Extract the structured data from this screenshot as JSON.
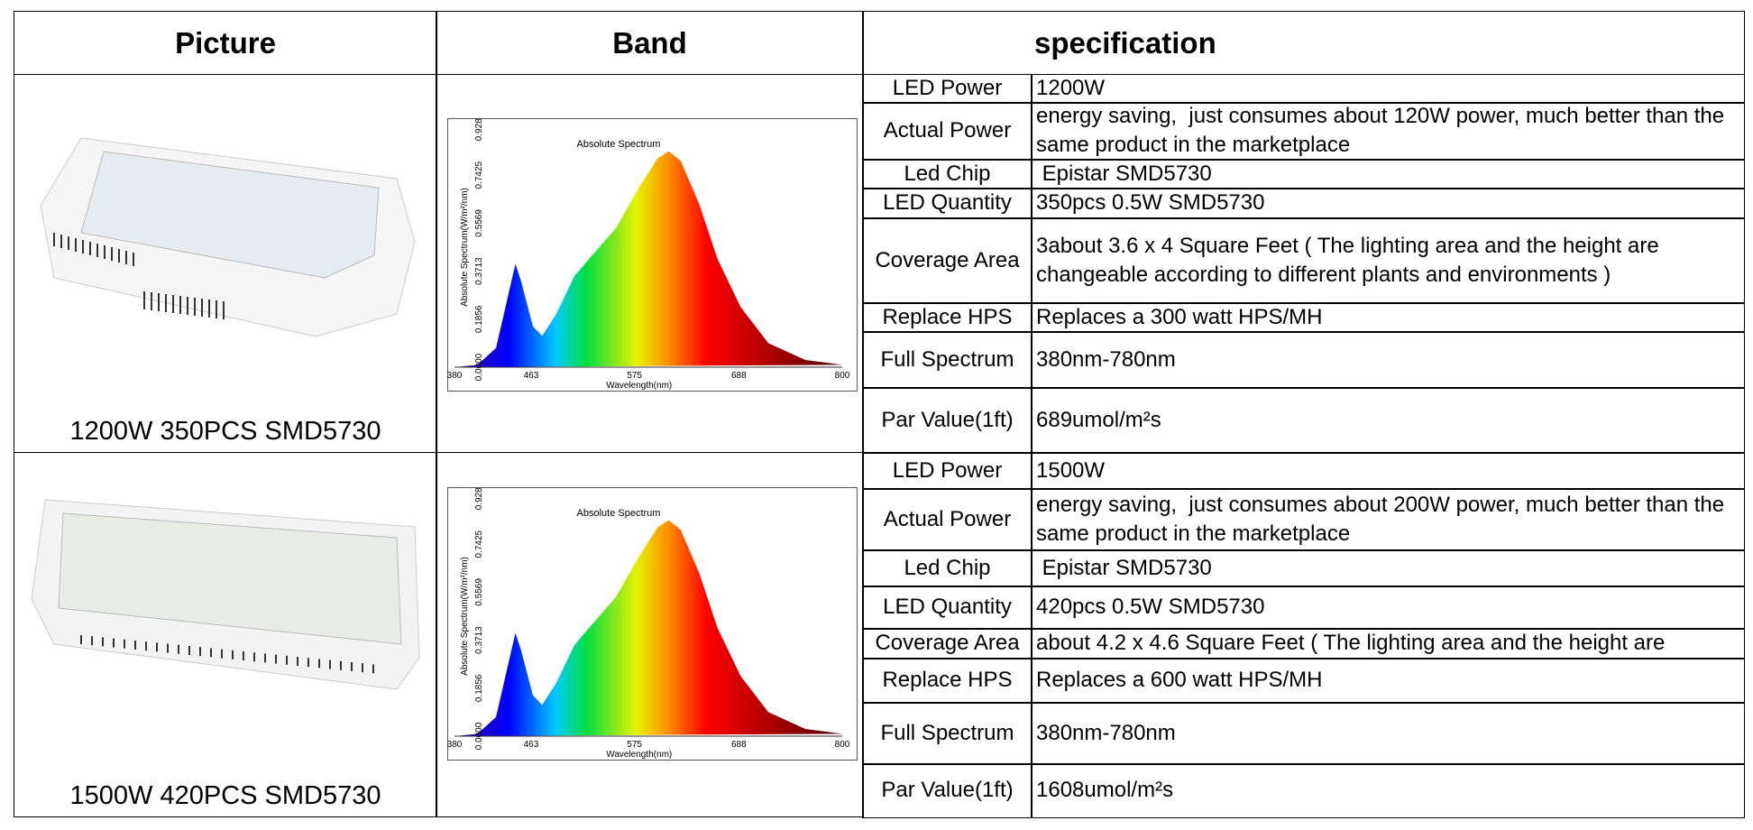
{
  "header": {
    "picture": "Picture",
    "band": "Band",
    "specification": "specification"
  },
  "products": [
    {
      "caption": "1200W 350PCS SMD5730",
      "band": {
        "title": "Absolute Spectrum",
        "x_label": "Wavelength(nm)",
        "y_label": "Absolute Spectrum(W/m²/nm)",
        "x_ticks": [
          380,
          463,
          575,
          688,
          800
        ],
        "y_ticks": [
          "0.0000",
          "0.1856",
          "0.3713",
          "0.5569",
          "0.7425",
          "0.9281"
        ]
      },
      "specs": [
        {
          "label": "LED Power",
          "value": "1200W"
        },
        {
          "label": "Actual Power",
          "value": "energy saving,  just consumes about 120W power, much better than the same product in the marketplace"
        },
        {
          "label": "Led Chip",
          "value": " Epistar SMD5730"
        },
        {
          "label": "LED Quantity",
          "value": "350pcs 0.5W SMD5730"
        },
        {
          "label": "Coverage Area",
          "value": "3about 3.6 x 4 Square Feet ( The lighting area and the height are changeable according to different plants and environments )"
        },
        {
          "label": "Replace HPS",
          "value": "Replaces a 300 watt HPS/MH"
        },
        {
          "label": "Full Spectrum",
          "value": "380nm-780nm"
        },
        {
          "label": "Par Value(1ft)",
          "value": "689umol/m²s"
        }
      ]
    },
    {
      "caption": "1500W 420PCS SMD5730",
      "band": {
        "title": "Absolute Spectrum",
        "x_label": "Wavelength(nm)",
        "y_label": "Absolute Spectrum(W/m²/nm)",
        "x_ticks": [
          380,
          463,
          575,
          688,
          800
        ],
        "y_ticks": [
          "0.0000",
          "0.1856",
          "0.3713",
          "0.5569",
          "0.7425",
          "0.9281"
        ]
      },
      "specs": [
        {
          "label": "LED Power",
          "value": "1500W"
        },
        {
          "label": "Actual Power",
          "value": "energy saving,  just consumes about 200W power, much better than the same product in the marketplace"
        },
        {
          "label": "Led Chip",
          "value": " Epistar SMD5730"
        },
        {
          "label": "LED Quantity",
          "value": "420pcs 0.5W SMD5730"
        },
        {
          "label": "Coverage Area",
          "value": "about 4.2 x 4.6 Square Feet ( The lighting area and the height are"
        },
        {
          "label": "Replace HPS",
          "value": "Replaces a 600 watt HPS/MH"
        },
        {
          "label": "Full Spectrum",
          "value": "380nm-780nm"
        },
        {
          "label": "Par Value(1ft)",
          "value": "1608umol/m²s"
        }
      ]
    }
  ]
}
